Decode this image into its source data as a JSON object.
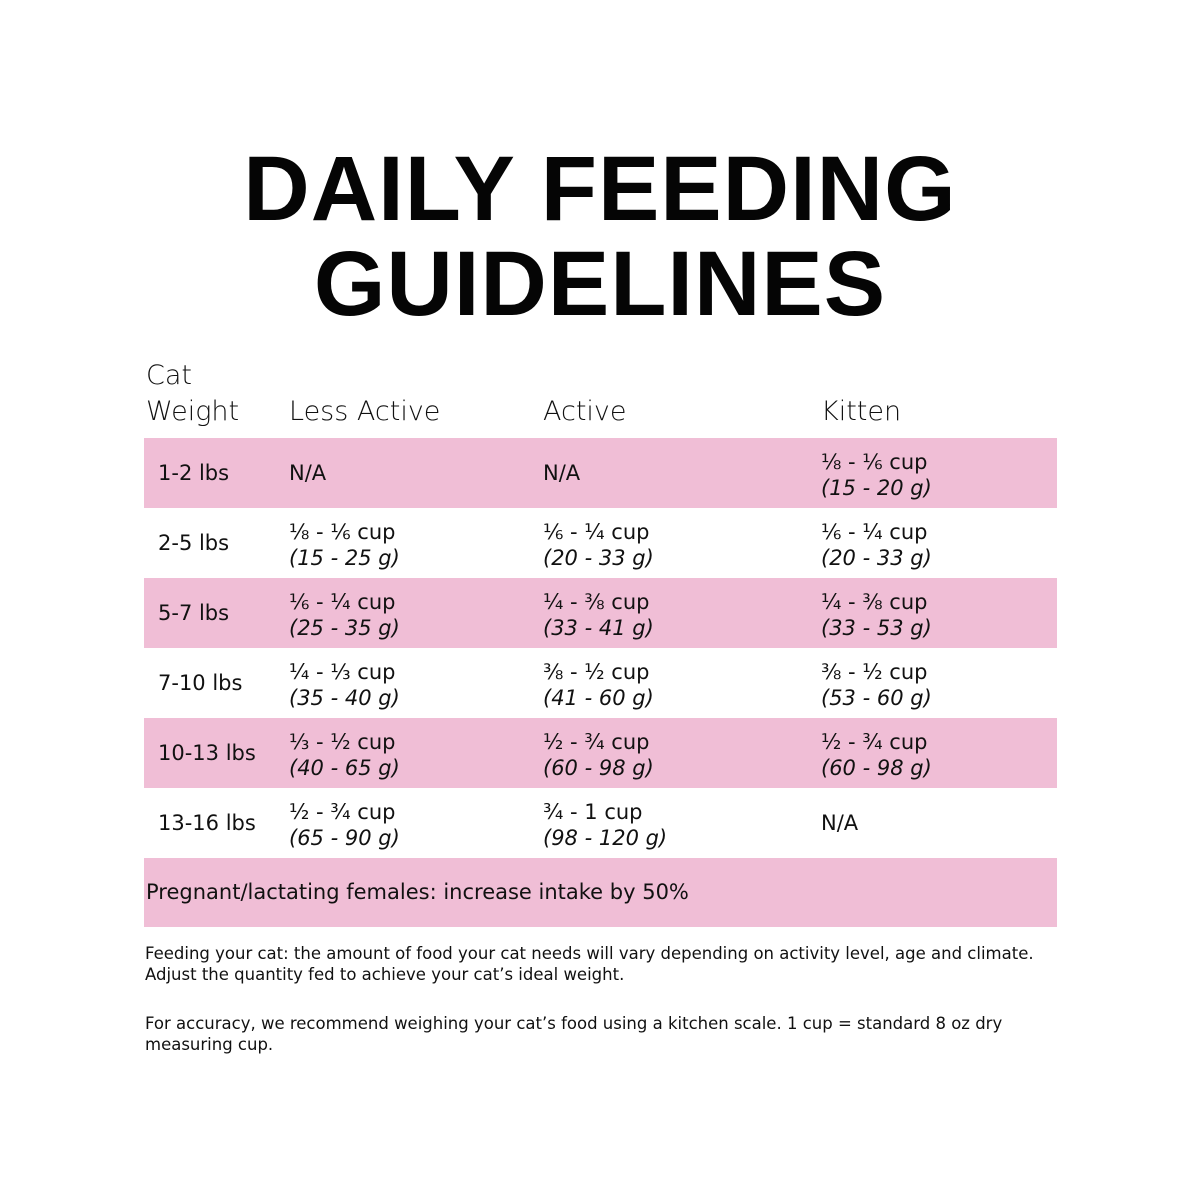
{
  "title": {
    "line1": "DAILY FEEDING",
    "line2": "GUIDELINES"
  },
  "colors": {
    "row_highlight": "#f0bed6",
    "text": "#111111",
    "background": "#ffffff"
  },
  "table": {
    "headers": {
      "weight_line1": "Cat",
      "weight_line2": "Weight",
      "less_active": "Less Active",
      "active": "Active",
      "kitten": "Kitten"
    },
    "rows": [
      {
        "weight": "1-2 lbs",
        "less_active": {
          "cup": "N/A",
          "grams": ""
        },
        "active": {
          "cup": "N/A",
          "grams": ""
        },
        "kitten": {
          "cup": "⅛ - ⅙ cup",
          "grams": "(15 - 20 g)"
        }
      },
      {
        "weight": "2-5 lbs",
        "less_active": {
          "cup": "⅛ - ⅙ cup",
          "grams": "(15 - 25 g)"
        },
        "active": {
          "cup": "⅙ - ¼ cup",
          "grams": "(20 - 33 g)"
        },
        "kitten": {
          "cup": "⅙ - ¼ cup",
          "grams": "(20 - 33 g)"
        }
      },
      {
        "weight": "5-7 lbs",
        "less_active": {
          "cup": "⅙ - ¼ cup",
          "grams": "(25 - 35 g)"
        },
        "active": {
          "cup": "¼ - ⅜ cup",
          "grams": "(33 - 41 g)"
        },
        "kitten": {
          "cup": "¼ - ⅜ cup",
          "grams": "(33 - 53 g)"
        }
      },
      {
        "weight": "7-10 lbs",
        "less_active": {
          "cup": "¼ - ⅓ cup",
          "grams": "(35 - 40 g)"
        },
        "active": {
          "cup": "⅜ - ½ cup",
          "grams": "(41 - 60 g)"
        },
        "kitten": {
          "cup": "⅜ - ½ cup",
          "grams": "(53 - 60 g)"
        }
      },
      {
        "weight": "10-13 lbs",
        "less_active": {
          "cup": "⅓ - ½ cup",
          "grams": "(40 - 65 g)"
        },
        "active": {
          "cup": "½ - ¾ cup",
          "grams": "(60 - 98 g)"
        },
        "kitten": {
          "cup": "½ - ¾ cup",
          "grams": "(60 - 98 g)"
        }
      },
      {
        "weight": "13-16 lbs",
        "less_active": {
          "cup": "½ - ¾ cup",
          "grams": "(65 - 90 g)"
        },
        "active": {
          "cup": "¾ - 1 cup",
          "grams": "(98 - 120 g)"
        },
        "kitten": {
          "cup": "N/A",
          "grams": ""
        }
      }
    ],
    "footnote_row": "Pregnant/lactating females: increase intake by 50%"
  },
  "notes": [
    "Feeding your cat: the amount of food your cat needs will vary depending on activity level, age and climate. Adjust the quantity fed to achieve your cat’s ideal weight.",
    "For accuracy, we recommend weighing your cat’s food using a kitchen scale. 1 cup = standard 8 oz dry measuring cup."
  ]
}
